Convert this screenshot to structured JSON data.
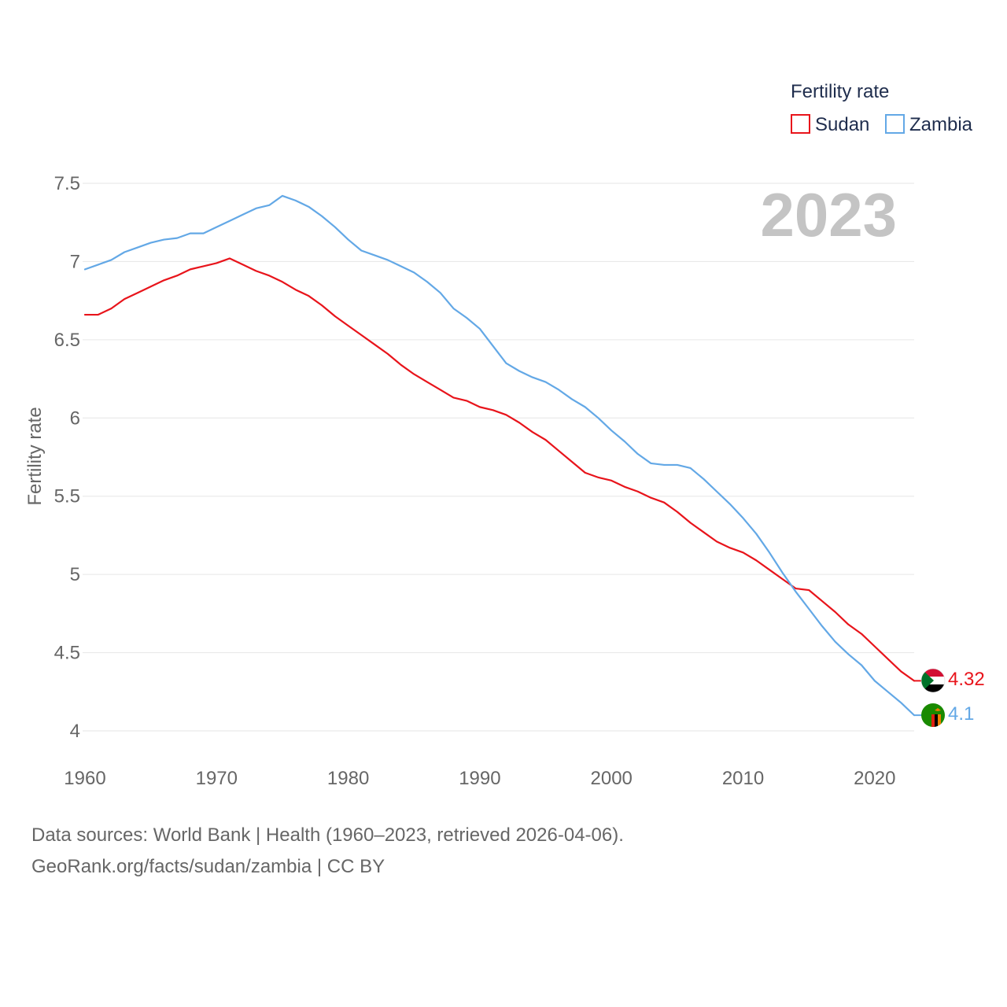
{
  "legend": {
    "title": "Fertility rate"
  },
  "year_label": "2023",
  "source": {
    "line1": "Data sources: World Bank | Health (1960–2023, retrieved 2026-04-06).",
    "line2": "GeoRank.org/facts/sudan/zambia | CC BY"
  },
  "colors": {
    "sudan": "#e8141b",
    "zambia": "#63a8e6",
    "grid": "#e6e6e6"
  },
  "chart_data": {
    "type": "line",
    "title": "",
    "xlabel": "",
    "ylabel": "Fertility rate",
    "xlim": [
      1960,
      2023
    ],
    "ylim": [
      4,
      7.5
    ],
    "x_ticks": [
      1960,
      1970,
      1980,
      1990,
      2000,
      2010,
      2020
    ],
    "y_ticks": [
      4,
      4.5,
      5,
      5.5,
      6,
      6.5,
      7,
      7.5
    ],
    "y_tick_labels": [
      "4",
      "4.5",
      "5",
      "5.5",
      "6",
      "6.5",
      "7",
      "7.5"
    ],
    "legend_position": "top-right",
    "x": [
      1960,
      1961,
      1962,
      1963,
      1964,
      1965,
      1966,
      1967,
      1968,
      1969,
      1970,
      1971,
      1972,
      1973,
      1974,
      1975,
      1976,
      1977,
      1978,
      1979,
      1980,
      1981,
      1982,
      1983,
      1984,
      1985,
      1986,
      1987,
      1988,
      1989,
      1990,
      1991,
      1992,
      1993,
      1994,
      1995,
      1996,
      1997,
      1998,
      1999,
      2000,
      2001,
      2002,
      2003,
      2004,
      2005,
      2006,
      2007,
      2008,
      2009,
      2010,
      2011,
      2012,
      2013,
      2014,
      2015,
      2016,
      2017,
      2018,
      2019,
      2020,
      2021,
      2022,
      2023
    ],
    "series": [
      {
        "name": "Sudan",
        "color": "#e8141b",
        "end_label": "4.32",
        "values": [
          6.66,
          6.66,
          6.7,
          6.76,
          6.8,
          6.84,
          6.88,
          6.91,
          6.95,
          6.97,
          6.99,
          7.02,
          6.98,
          6.94,
          6.91,
          6.87,
          6.82,
          6.78,
          6.72,
          6.65,
          6.59,
          6.53,
          6.47,
          6.41,
          6.34,
          6.28,
          6.23,
          6.18,
          6.13,
          6.11,
          6.07,
          6.05,
          6.02,
          5.97,
          5.91,
          5.86,
          5.79,
          5.72,
          5.65,
          5.62,
          5.6,
          5.56,
          5.53,
          5.49,
          5.46,
          5.4,
          5.33,
          5.27,
          5.21,
          5.17,
          5.14,
          5.09,
          5.03,
          4.97,
          4.91,
          4.9,
          4.83,
          4.76,
          4.68,
          4.62,
          4.54,
          4.46,
          4.38,
          4.32
        ]
      },
      {
        "name": "Zambia",
        "color": "#63a8e6",
        "end_label": "4.1",
        "values": [
          6.95,
          6.98,
          7.01,
          7.06,
          7.09,
          7.12,
          7.14,
          7.15,
          7.18,
          7.18,
          7.22,
          7.26,
          7.3,
          7.34,
          7.36,
          7.42,
          7.39,
          7.35,
          7.29,
          7.22,
          7.14,
          7.07,
          7.04,
          7.01,
          6.97,
          6.93,
          6.87,
          6.8,
          6.7,
          6.64,
          6.57,
          6.46,
          6.35,
          6.3,
          6.26,
          6.23,
          6.18,
          6.12,
          6.07,
          6.0,
          5.92,
          5.85,
          5.77,
          5.71,
          5.7,
          5.7,
          5.68,
          5.61,
          5.53,
          5.45,
          5.36,
          5.26,
          5.14,
          5.01,
          4.89,
          4.78,
          4.67,
          4.57,
          4.49,
          4.42,
          4.32,
          4.25,
          4.18,
          4.1
        ]
      }
    ]
  }
}
